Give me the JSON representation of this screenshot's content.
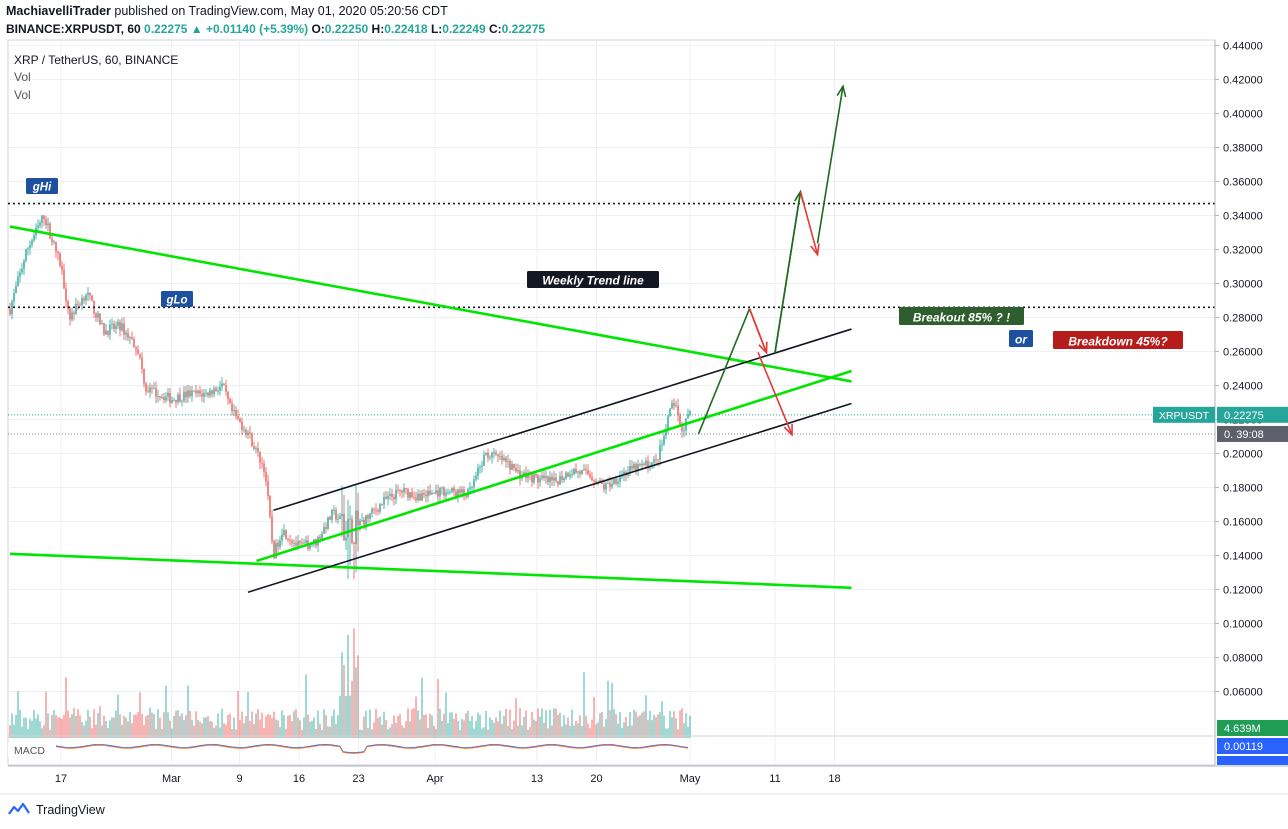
{
  "header": {
    "publisher_name": "MachiavelliTrader",
    "published_text": " published on TradingView.com, May 01, 2020 05:20:56 CDT",
    "ticker_line": "BINANCE:XRPUSDT, 60",
    "last": "0.22275",
    "change": "+0.01140 (+5.39%)",
    "o_label": "O:",
    "o_value": "0.22250",
    "h_label": "H:",
    "h_value": "0.22418",
    "l_label": "L:",
    "l_value": "0.22249",
    "c_label": "C:",
    "c_value": "0.22275"
  },
  "legend": {
    "symbol": "XRP / TetherUS, 60, BINANCE",
    "vol1": "Vol",
    "vol2": "Vol"
  },
  "footer": {
    "brand": "TradingView"
  },
  "colors": {
    "bull": "#26a69a",
    "bear": "#ef5350",
    "green_line": "#00e600",
    "dark_green": "#1e6b1e",
    "red": "#e53935",
    "navy_label": "#1e50a2"
  },
  "chart_data": {
    "type": "candlestick",
    "y_axis": {
      "range": [
        0.044,
        0.446
      ],
      "ticks": [
        "0.06000",
        "0.08000",
        "0.10000",
        "0.12000",
        "0.14000",
        "0.16000",
        "0.18000",
        "0.20000",
        "0.22000",
        "0.24000",
        "0.26000",
        "0.28000",
        "0.30000",
        "0.32000",
        "0.34000",
        "0.36000",
        "0.38000",
        "0.40000",
        "0.42000",
        "0.44000"
      ],
      "tick_values": [
        0.06,
        0.08,
        0.1,
        0.12,
        0.14,
        0.16,
        0.18,
        0.2,
        0.22,
        0.24,
        0.26,
        0.28,
        0.3,
        0.32,
        0.34,
        0.36,
        0.38,
        0.4,
        0.42,
        0.44
      ]
    },
    "x_axis": {
      "tick_labels": [
        "17",
        "Mar",
        "9",
        "16",
        "23",
        "Apr",
        "13",
        "20",
        "May",
        "11",
        "18"
      ],
      "tick_dates": [
        "2020-02-17",
        "2020-03-01",
        "2020-03-09",
        "2020-03-16",
        "2020-03-23",
        "2020-04-01",
        "2020-04-13",
        "2020-04-20",
        "2020-05-01",
        "2020-05-11",
        "2020-05-18"
      ]
    },
    "price_path": [
      [
        "2020-02-11",
        0.285
      ],
      [
        "2020-02-13",
        0.32
      ],
      [
        "2020-02-15",
        0.34
      ],
      [
        "2020-02-17",
        0.31
      ],
      [
        "2020-02-18",
        0.28
      ],
      [
        "2020-02-20",
        0.295
      ],
      [
        "2020-02-22",
        0.272
      ],
      [
        "2020-02-24",
        0.275
      ],
      [
        "2020-02-26",
        0.262
      ],
      [
        "2020-02-27",
        0.238
      ],
      [
        "2020-03-01",
        0.232
      ],
      [
        "2020-03-03",
        0.235
      ],
      [
        "2020-03-05",
        0.235
      ],
      [
        "2020-03-07",
        0.24
      ],
      [
        "2020-03-08",
        0.225
      ],
      [
        "2020-03-10",
        0.212
      ],
      [
        "2020-03-12",
        0.19
      ],
      [
        "2020-03-13",
        0.14
      ],
      [
        "2020-03-14",
        0.155
      ],
      [
        "2020-03-16",
        0.145
      ],
      [
        "2020-03-18",
        0.148
      ],
      [
        "2020-03-20",
        0.165
      ],
      [
        "2020-03-22",
        0.155
      ],
      [
        "2020-03-24",
        0.162
      ],
      [
        "2020-03-26",
        0.172
      ],
      [
        "2020-03-28",
        0.178
      ],
      [
        "2020-03-30",
        0.175
      ],
      [
        "2020-04-02",
        0.178
      ],
      [
        "2020-04-05",
        0.176
      ],
      [
        "2020-04-07",
        0.2
      ],
      [
        "2020-04-09",
        0.196
      ],
      [
        "2020-04-11",
        0.188
      ],
      [
        "2020-04-13",
        0.185
      ],
      [
        "2020-04-15",
        0.183
      ],
      [
        "2020-04-17",
        0.19
      ],
      [
        "2020-04-19",
        0.188
      ],
      [
        "2020-04-21",
        0.18
      ],
      [
        "2020-04-23",
        0.188
      ],
      [
        "2020-04-25",
        0.192
      ],
      [
        "2020-04-27",
        0.195
      ],
      [
        "2020-04-28",
        0.21
      ],
      [
        "2020-04-29",
        0.232
      ],
      [
        "2020-04-30",
        0.213
      ],
      [
        "2020-05-01",
        0.22275
      ]
    ],
    "current_price": "0.22275",
    "price_tag_label": "XRPUSDT",
    "countdown_prefix": "0.",
    "countdown": "39:08",
    "volume_label": "4.639M",
    "macd_value": "0.00119",
    "macd_label": "MACD",
    "dotted_levels": [
      0.347,
      0.286
    ],
    "annotations": {
      "ghi": "gHi",
      "glo": "gLo",
      "weekly_trend": "Weekly Trend line",
      "breakout": "Breakout 85% ? !",
      "or": "or",
      "breakdown": "Breakdown 45%?"
    },
    "grid": true
  }
}
